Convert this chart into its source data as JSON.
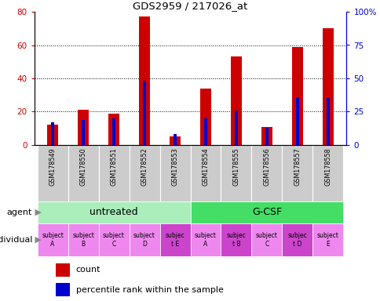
{
  "title": "GDS2959 / 217026_at",
  "samples": [
    "GSM178549",
    "GSM178550",
    "GSM178551",
    "GSM178552",
    "GSM178553",
    "GSM178554",
    "GSM178555",
    "GSM178556",
    "GSM178557",
    "GSM178558"
  ],
  "counts": [
    12,
    21,
    19,
    77,
    5,
    34,
    53,
    11,
    59,
    70
  ],
  "percentile_ranks": [
    17,
    19,
    20,
    48,
    8,
    20,
    26,
    13,
    36,
    36
  ],
  "ylim_left": [
    0,
    80
  ],
  "ylim_right": [
    0,
    100
  ],
  "yticks_left": [
    0,
    20,
    40,
    60,
    80
  ],
  "yticks_right": [
    0,
    25,
    50,
    75,
    100
  ],
  "ytick_right_labels": [
    "0",
    "25",
    "50",
    "75",
    "100%"
  ],
  "agent_groups": [
    {
      "label": "untreated",
      "start": 0,
      "end": 5,
      "color": "#aaeebb"
    },
    {
      "label": "G-CSF",
      "start": 5,
      "end": 10,
      "color": "#44dd66"
    }
  ],
  "individual_labels": [
    "subject\nA",
    "subject\nB",
    "subject\nC",
    "subject\nD",
    "subjec\nt E",
    "subject\nA",
    "subjec\nt B",
    "subject\nC",
    "subjec\nt D",
    "subject\nE"
  ],
  "individual_highlight": [
    4,
    6,
    8
  ],
  "bar_color": "#cc0000",
  "percentile_color": "#0000cc",
  "agent_label": "agent",
  "individual_label": "individual",
  "legend_count": "count",
  "legend_percentile": "percentile rank within the sample",
  "tick_label_bg": "#cccccc",
  "individual_normal_bg": "#ee88ee",
  "individual_highlight_bg": "#cc44cc",
  "bar_width": 0.35,
  "percentile_bar_width": 0.12
}
